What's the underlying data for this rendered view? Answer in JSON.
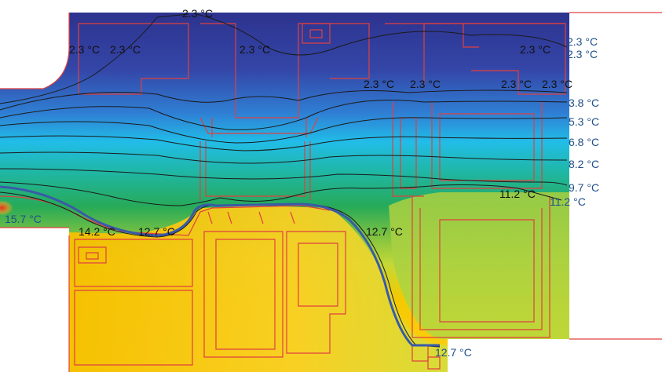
{
  "isotherm_labels": [
    {
      "id": "top-center",
      "text": "2.3 °C"
    },
    {
      "id": "upper-left-a",
      "text": "2.3 °C"
    },
    {
      "id": "upper-left-b",
      "text": "2.3 °C"
    },
    {
      "id": "upper-mid",
      "text": "2.3 °C"
    },
    {
      "id": "upper-right-a",
      "text": "2.3 °C"
    },
    {
      "id": "right-edge-1a",
      "text": "2.3 °C"
    },
    {
      "id": "right-edge-1b",
      "text": "2.3 °C"
    },
    {
      "id": "mid-a",
      "text": "2.3 °C"
    },
    {
      "id": "mid-b",
      "text": "2.3 °C"
    },
    {
      "id": "mid-c",
      "text": "2.3 °C"
    },
    {
      "id": "mid-d",
      "text": "2.3 °C"
    },
    {
      "id": "right-3-8",
      "text": "3.8 °C"
    },
    {
      "id": "right-5-3",
      "text": "5.3 °C"
    },
    {
      "id": "right-6-8",
      "text": "6.8 °C"
    },
    {
      "id": "right-8-2",
      "text": "8.2 °C"
    },
    {
      "id": "right-9-7",
      "text": "9.7 °C"
    },
    {
      "id": "center-11-2",
      "text": "11.2 °C"
    },
    {
      "id": "right-11-2",
      "text": "11.2 °C"
    },
    {
      "id": "left-15-7",
      "text": "15.7 °C"
    },
    {
      "id": "left-14-2",
      "text": "14.2 °C"
    },
    {
      "id": "left-12-7",
      "text": "12.7 °C"
    },
    {
      "id": "mid-12-7",
      "text": "12.7 °C"
    },
    {
      "id": "bottom-12-7",
      "text": "12.7 °C"
    }
  ],
  "colors": {
    "cold": "#2b3a93",
    "cool": "#1fb6e8",
    "mid": "#27ad5e",
    "warm": "#b8d63a",
    "hot": "#f7c600",
    "hottest": "#e8421a",
    "frame_outline": "#e04040",
    "isotherm": "#1a1a1a",
    "boundary_line": "#3a5aa8"
  },
  "legend_icons": {
    "frame": "window-frame-profile",
    "isotherm": "isotherm-line"
  }
}
